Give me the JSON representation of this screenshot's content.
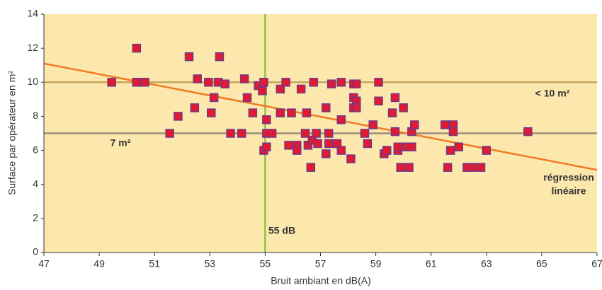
{
  "chart_data": {
    "type": "scatter",
    "xlabel": "Bruit ambiant  en dB(A)",
    "ylabel": "Surface par opérateur en m²",
    "x": [
      49.45,
      50.35,
      50.35,
      50.65,
      51.55,
      51.85,
      52.25,
      52.45,
      52.55,
      52.95,
      53.05,
      53.15,
      53.3,
      53.35,
      53.55,
      53.75,
      54.15,
      54.25,
      54.35,
      54.55,
      54.75,
      54.9,
      54.95,
      55.05,
      55.05,
      54.95,
      55.05,
      55.25,
      55.55,
      55.55,
      55.75,
      55.85,
      55.95,
      56.15,
      56.15,
      56.3,
      56.5,
      56.45,
      56.55,
      56.65,
      56.7,
      56.75,
      56.85,
      56.9,
      57.2,
      57.2,
      57.3,
      57.3,
      57.4,
      57.6,
      57.75,
      57.75,
      57.75,
      58.1,
      58.2,
      58.2,
      58.3,
      58.3,
      58.2,
      58.3,
      58.6,
      58.7,
      58.9,
      59.1,
      59.1,
      59.3,
      59.4,
      59.6,
      59.7,
      59.7,
      59.8,
      59.8,
      59.9,
      60.0,
      60.1,
      60.2,
      60.3,
      60.3,
      60.4,
      61.5,
      61.6,
      61.7,
      61.8,
      61.8,
      62.0,
      62.3,
      62.5,
      62.8,
      63.0,
      64.5
    ],
    "values": [
      10,
      12,
      10,
      10,
      7,
      8,
      11.5,
      8.5,
      10.2,
      10,
      8.2,
      9.1,
      10,
      11.5,
      9.9,
      7,
      7,
      10.2,
      9.1,
      8.2,
      9.8,
      9.5,
      10,
      7.8,
      7,
      6,
      6.2,
      7,
      8.2,
      9.6,
      10,
      6.3,
      8.2,
      6.3,
      6,
      9.6,
      8.2,
      7,
      6.3,
      5,
      6.6,
      10,
      7,
      6.4,
      5.8,
      8.5,
      7,
      6.4,
      9.9,
      6.4,
      10,
      7.8,
      6,
      5.5,
      9.9,
      9.1,
      9.9,
      8.9,
      8.5,
      8.5,
      7,
      6.4,
      7.5,
      8.9,
      10,
      5.8,
      6,
      8.2,
      9.1,
      7.1,
      6,
      6.2,
      5,
      8.5,
      6.2,
      5,
      6.2,
      7.1,
      7.5,
      7.5,
      5,
      6,
      7.5,
      7.1,
      6.2,
      5,
      5,
      5,
      6,
      7.1
    ],
    "marker_color": "#e3192f",
    "marker_edge": "#6b3a8e",
    "xlim": [
      47,
      67
    ],
    "ylim": [
      0,
      14
    ],
    "xticks": [
      47,
      49,
      51,
      53,
      55,
      57,
      59,
      61,
      63,
      65,
      67
    ],
    "yticks": [
      0,
      2,
      4,
      6,
      8,
      10,
      12,
      14
    ],
    "background": "#fce8ad",
    "reference_lines": [
      {
        "axis": "y",
        "value": 10,
        "label": "< 10 m²",
        "color": "#c6a45c"
      },
      {
        "axis": "y",
        "value": 7,
        "label": "7 m²",
        "color": "#9c8c7c"
      },
      {
        "axis": "x",
        "value": 55,
        "label": "55 dB",
        "color": "#8cc63f"
      }
    ],
    "regression": {
      "label": [
        "régression",
        "linéaire"
      ],
      "x": [
        47,
        67
      ],
      "values": [
        11.1,
        4.85
      ],
      "color": "#f07a22"
    }
  }
}
